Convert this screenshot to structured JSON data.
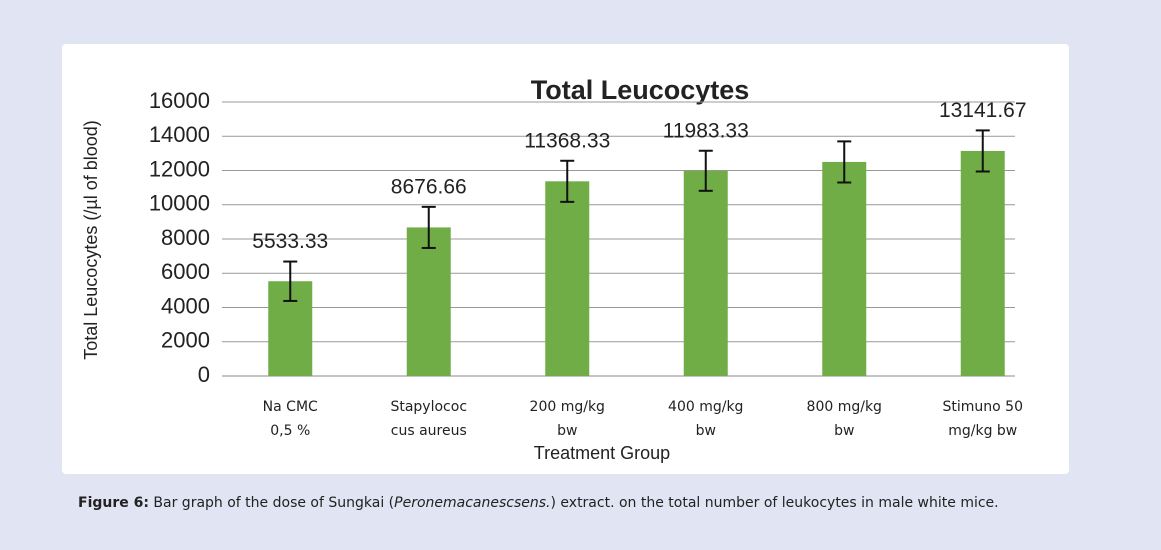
{
  "chart_data": {
    "type": "bar",
    "title": "Total Leucocytes",
    "y_label": "Total Leucocytes (/µl of blood)",
    "x_label": "Treatment Group",
    "categories": [
      [
        "Na CMC",
        "0,5 %"
      ],
      [
        "Stapylococ",
        "cus aureus"
      ],
      [
        "200 mg/kg",
        "bw"
      ],
      [
        "400 mg/kg",
        "bw"
      ],
      [
        "800 mg/kg",
        "bw"
      ],
      [
        "Stimuno 50",
        "mg/kg bw"
      ]
    ],
    "values": [
      5533.33,
      8676.66,
      11368.33,
      11983.33,
      12500,
      13141.67
    ],
    "errors": [
      1150,
      1200,
      1200,
      1170,
      1200,
      1200
    ],
    "labeled": [
      true,
      true,
      true,
      true,
      false,
      true
    ],
    "color": "#70ad47",
    "ylim": [
      0,
      16000
    ],
    "yticks": [
      0,
      2000,
      4000,
      6000,
      8000,
      10000,
      12000,
      14000,
      16000
    ],
    "grid": true
  },
  "caption": {
    "label": "Figure 6:",
    "text_before": " Bar graph of the dose of Sungkai (",
    "italic": "Peronemacanescsens.",
    "text_after": ") extract. on the total number of leukocytes in male white mice."
  }
}
